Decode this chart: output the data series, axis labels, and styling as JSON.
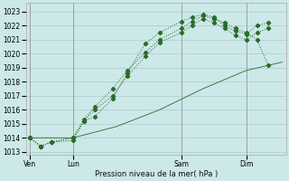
{
  "bg_color": "#cce8e8",
  "grid_color": "#aacccc",
  "line_color": "#2a6b2a",
  "ylim_low": 1012.8,
  "ylim_high": 1023.6,
  "yticks": [
    1013,
    1014,
    1015,
    1016,
    1017,
    1018,
    1019,
    1020,
    1021,
    1022,
    1023
  ],
  "xlabel": "Pression niveau de la mer( hPa )",
  "xtick_labels": [
    "Ven",
    "Lun",
    "Sam",
    "Dim"
  ],
  "xtick_positions": [
    0,
    0.6,
    2.1,
    3.0
  ],
  "vline_positions": [
    0,
    0.6,
    2.1,
    3.0
  ],
  "xlim_low": -0.05,
  "xlim_high": 3.55,
  "line1_x": [
    0,
    0.15,
    0.3,
    0.6,
    0.75,
    0.9,
    1.15,
    1.35,
    1.6,
    1.8,
    2.1,
    2.25,
    2.4,
    2.55,
    2.7,
    2.85,
    3.0,
    3.15,
    3.3
  ],
  "line1_y": [
    1014.0,
    1013.4,
    1013.7,
    1014.0,
    1015.3,
    1016.2,
    1017.5,
    1018.8,
    1020.1,
    1021.0,
    1021.8,
    1022.3,
    1022.7,
    1022.5,
    1022.2,
    1021.8,
    1021.5,
    1021.0,
    1019.2
  ],
  "line2_x": [
    0,
    0.15,
    0.3,
    0.6,
    0.75,
    0.9,
    1.15,
    1.35,
    1.6,
    1.8,
    2.1,
    2.25,
    2.4,
    2.55,
    2.7,
    2.85,
    3.0,
    3.15,
    3.3
  ],
  "line2_y": [
    1014.0,
    1013.4,
    1013.7,
    1013.8,
    1015.2,
    1015.5,
    1016.8,
    1018.6,
    1020.7,
    1021.5,
    1022.3,
    1022.6,
    1022.8,
    1022.6,
    1022.0,
    1021.6,
    1021.4,
    1022.0,
    1022.2
  ],
  "line3_x": [
    0,
    0.15,
    0.3,
    0.6,
    0.75,
    0.9,
    1.15,
    1.35,
    1.6,
    1.8,
    2.1,
    2.25,
    2.4,
    2.55,
    2.7,
    2.85,
    3.0,
    3.15,
    3.3
  ],
  "line3_y": [
    1014.0,
    1013.4,
    1013.7,
    1014.0,
    1015.2,
    1016.0,
    1017.0,
    1018.4,
    1019.8,
    1020.8,
    1021.5,
    1022.0,
    1022.5,
    1022.2,
    1021.8,
    1021.3,
    1021.0,
    1021.5,
    1021.8
  ],
  "line4_x": [
    0,
    0.6,
    1.2,
    1.8,
    2.4,
    3.0,
    3.5
  ],
  "line4_y": [
    1014.0,
    1014.0,
    1014.8,
    1016.0,
    1017.5,
    1018.8,
    1019.4
  ]
}
